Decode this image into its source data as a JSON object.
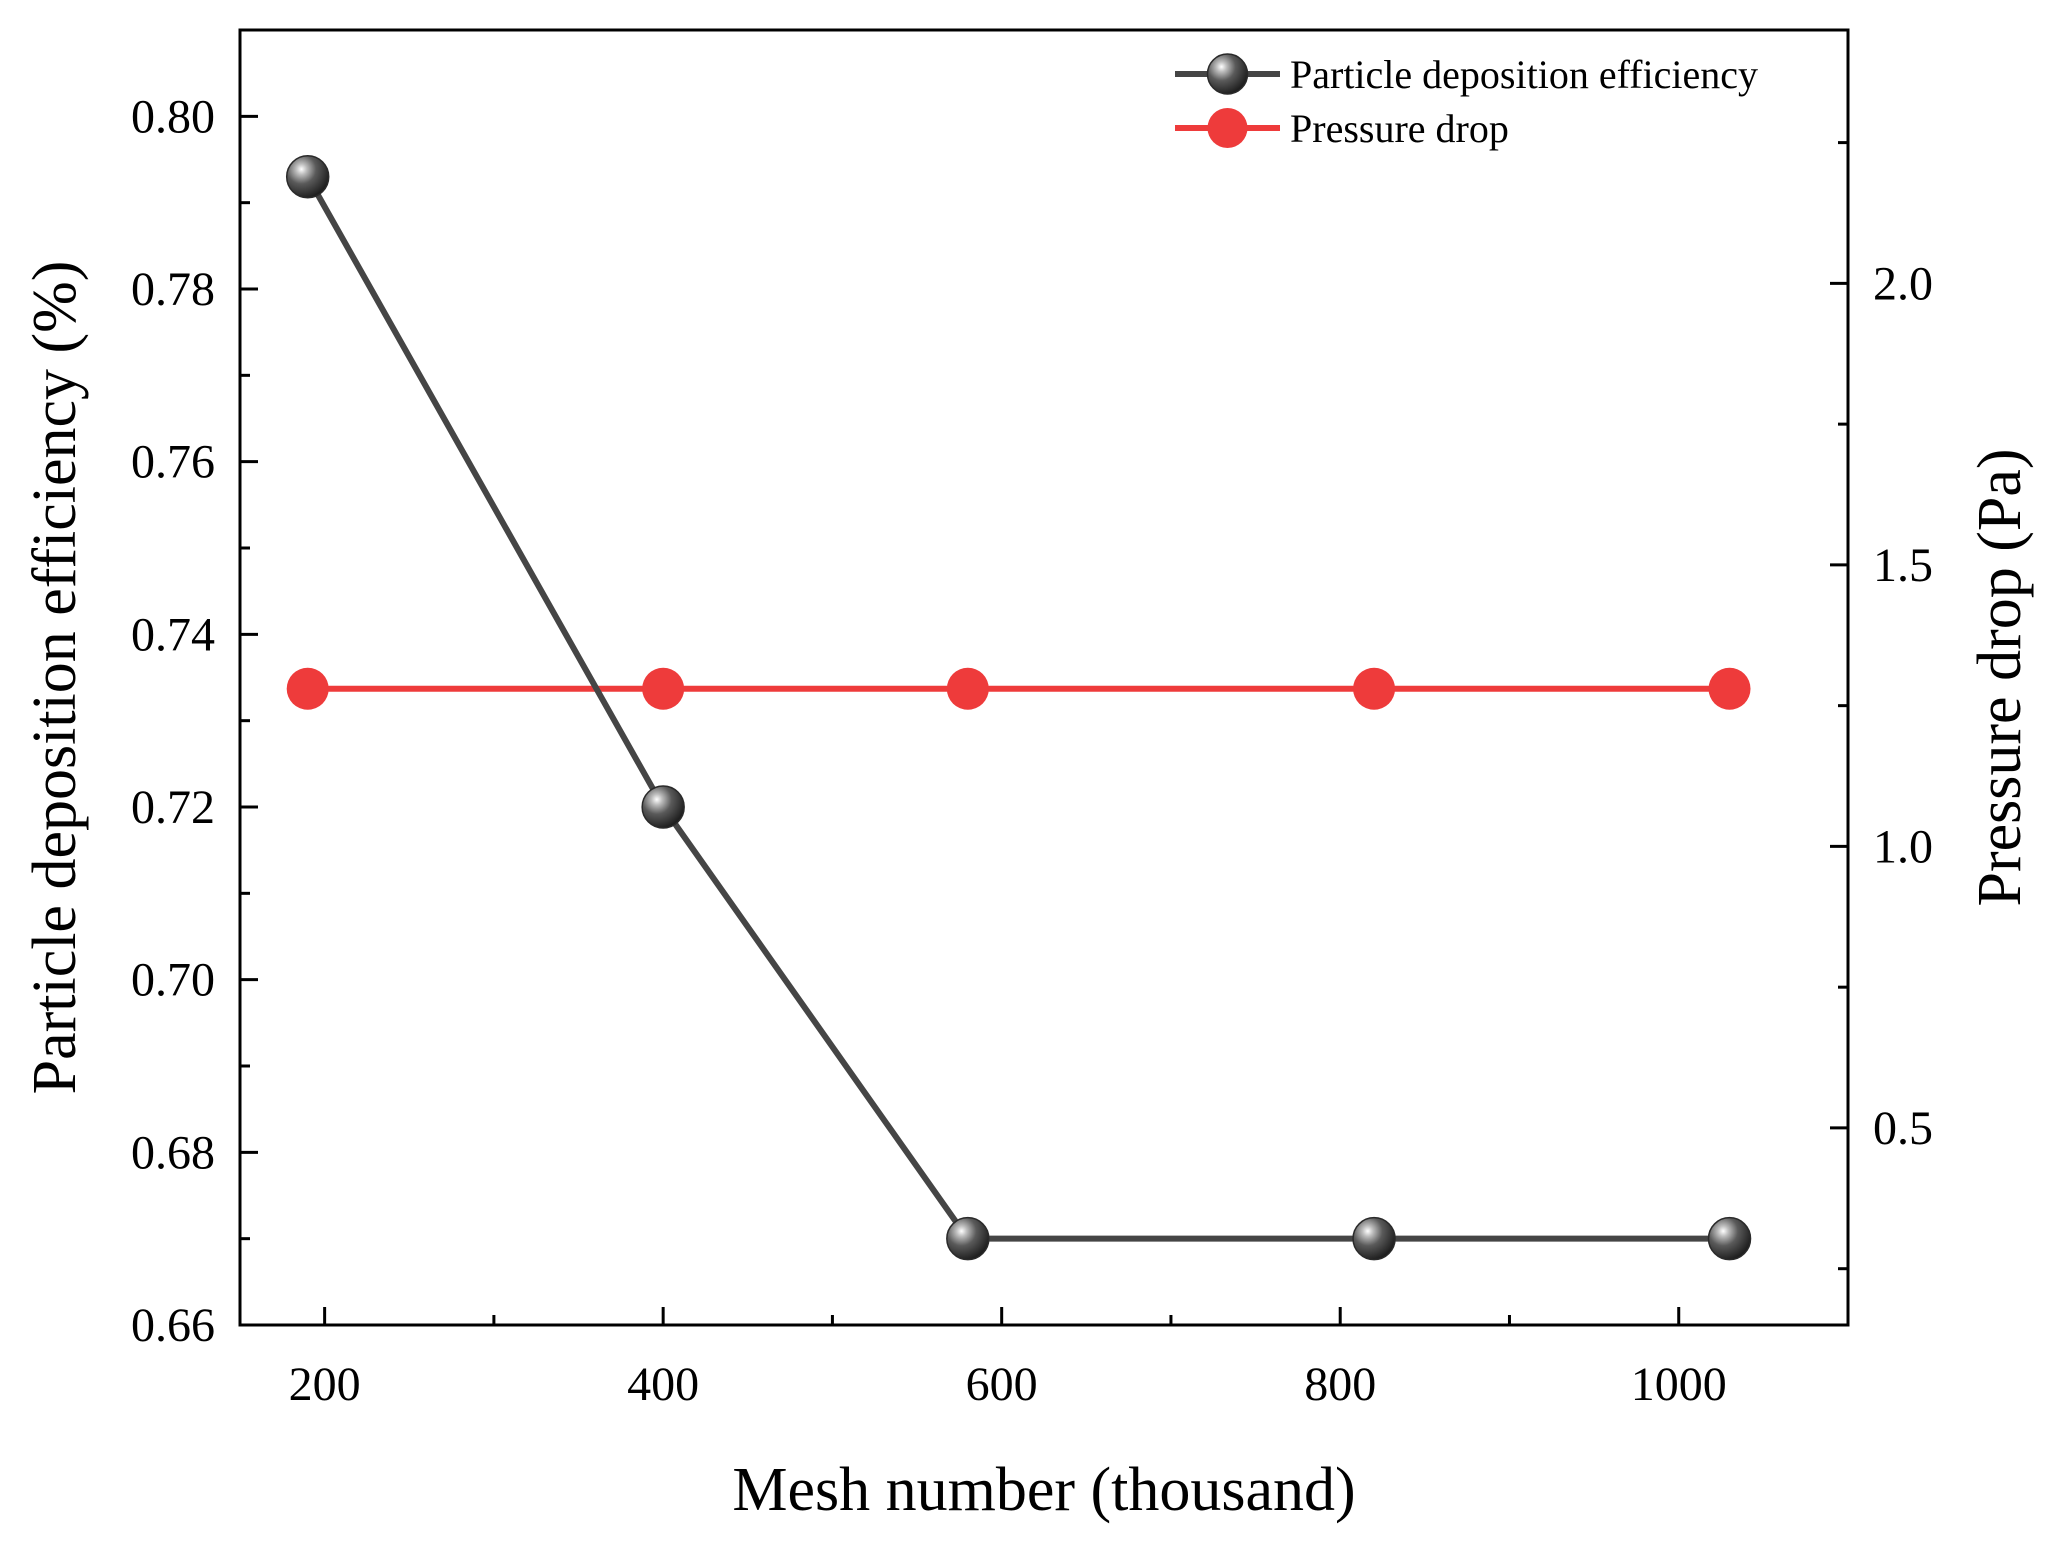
{
  "chart_data": {
    "type": "line",
    "title": "",
    "xlabel": "Mesh number (thousand)",
    "ylabel": "Particle deposition efficiency (%)",
    "y2label": "Pressure drop (Pa)",
    "xlim": [
      150,
      1100
    ],
    "ylim": [
      0.66,
      0.81
    ],
    "y2lim": [
      0.15,
      2.45
    ],
    "x_ticks": [
      200,
      400,
      600,
      800,
      1000
    ],
    "x_tick_labels": [
      "200",
      "400",
      "600",
      "800",
      "1000"
    ],
    "y_ticks": [
      0.66,
      0.68,
      0.7,
      0.72,
      0.74,
      0.76,
      0.78,
      0.8
    ],
    "y_tick_labels": [
      "0.66",
      "0.68",
      "0.70",
      "0.72",
      "0.74",
      "0.76",
      "0.78",
      "0.80"
    ],
    "y2_ticks": [
      0.5,
      1.0,
      1.5,
      2.0
    ],
    "y2_tick_labels": [
      "0.5",
      "1.0",
      "1.5",
      "2.0"
    ],
    "grid": false,
    "legend_position": "top-right",
    "series": [
      {
        "name": "Particle deposition efficiency",
        "axis": "left",
        "color": "#454545",
        "marker": "sphere",
        "x": [
          190,
          400,
          580,
          820,
          1030
        ],
        "values": [
          0.793,
          0.72,
          0.67,
          0.67,
          0.67
        ]
      },
      {
        "name": "Pressure drop",
        "axis": "right",
        "color": "#ee3b3b",
        "marker": "circle",
        "x": [
          190,
          400,
          580,
          820,
          1030
        ],
        "values": [
          1.28,
          1.28,
          1.28,
          1.28,
          1.28
        ]
      }
    ]
  }
}
